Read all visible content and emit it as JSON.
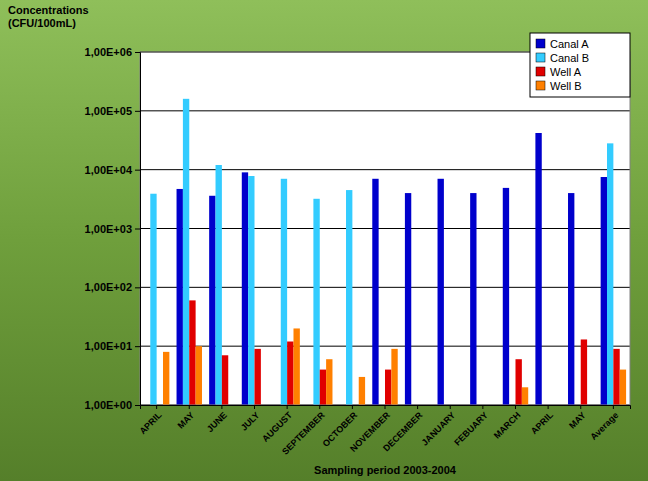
{
  "chart_data": {
    "type": "bar",
    "title": "Concentrations (CFU/100mL)",
    "x_label": "Sampling period 2003-2004",
    "categories": [
      "APRIL",
      "MAY",
      "JUNE",
      "JULY",
      "AUGUST",
      "SEPTEMBER",
      "OCTOBER",
      "NOVEMBER",
      "DECEMBER",
      "JANUARY",
      "FEBUARY",
      "MARCH",
      "APRIL",
      "MAY",
      "Average"
    ],
    "series": [
      {
        "name": "Canal A",
        "color": "#0000cc",
        "values": [
          null,
          4700,
          3600,
          9000,
          null,
          null,
          null,
          7000,
          4000,
          7000,
          4000,
          4900,
          42000,
          4000,
          7500
        ]
      },
      {
        "name": "Canal B",
        "color": "#33ccff",
        "values": [
          3900,
          160000,
          12000,
          7800,
          7000,
          3200,
          4500,
          null,
          null,
          null,
          null,
          null,
          null,
          null,
          28000
        ]
      },
      {
        "name": "Well A",
        "color": "#e00000",
        "values": [
          null,
          60,
          7,
          9,
          12,
          4,
          null,
          4,
          null,
          null,
          null,
          6,
          null,
          13,
          9
        ]
      },
      {
        "name": "Well B",
        "color": "#ff8000",
        "values": [
          8,
          10,
          null,
          null,
          20,
          6,
          3,
          9,
          null,
          null,
          null,
          2,
          null,
          null,
          4
        ]
      }
    ],
    "ylim": [
      1,
      1000000
    ],
    "yticks": [
      {
        "value": 1,
        "label": "1,00E+00"
      },
      {
        "value": 10,
        "label": "1,00E+01"
      },
      {
        "value": 100,
        "label": "1,00E+02"
      },
      {
        "value": 1000,
        "label": "1,00E+03"
      },
      {
        "value": 10000,
        "label": "1,00E+04"
      },
      {
        "value": 100000,
        "label": "1,00E+05"
      },
      {
        "value": 1000000,
        "label": "1,00E+06"
      }
    ],
    "log": "y",
    "grid": true,
    "legend": "upper right"
  }
}
